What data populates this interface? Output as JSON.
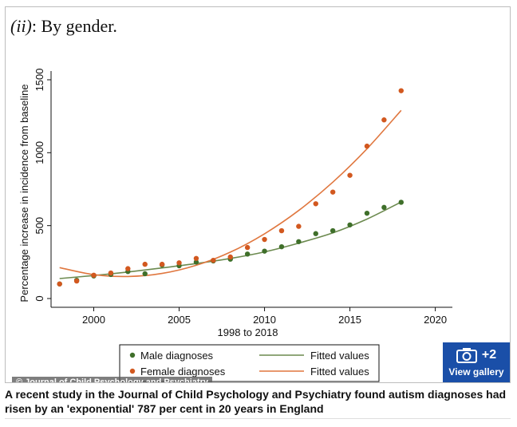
{
  "panel_label": {
    "italic_part": "(ii)",
    "text": ": By gender."
  },
  "credit": "© Journal of Child Psychology and Psychiatry",
  "gallery": {
    "count": "+2",
    "label": "View gallery",
    "icon": "camera-icon"
  },
  "caption": "A recent study in the Journal of Child Psychology and Psychiatry found autism diagnoses had risen by an 'exponential' 787 per cent in 20 years in England",
  "colors": {
    "male": "#3f6f2a",
    "female": "#d2581f",
    "male_fit": "#6c8a4f",
    "female_fit": "#e0773f",
    "gallery_bg": "#1a4fa8"
  },
  "chart_data": {
    "type": "scatter",
    "title": "",
    "xlabel": "1998 to 2018",
    "ylabel": "Percentage increase in incidence from baseline",
    "xlim": [
      1997.5,
      2021
    ],
    "ylim": [
      -60,
      1560
    ],
    "x_ticks": [
      2000,
      2005,
      2010,
      2015,
      2020
    ],
    "y_ticks": [
      0,
      500,
      1000,
      1500
    ],
    "grid": false,
    "legend_position": "bottom",
    "legend": [
      {
        "label": "Male diagnoses",
        "kind": "marker",
        "series": "male"
      },
      {
        "label": "Fitted values",
        "kind": "line",
        "series": "male_fit"
      },
      {
        "label": "Female diagnoses",
        "kind": "marker",
        "series": "female"
      },
      {
        "label": "Fitted values",
        "kind": "line",
        "series": "female_fit"
      }
    ],
    "series": [
      {
        "name": "Male diagnoses",
        "kind": "points",
        "color_key": "male",
        "x": [
          1998,
          1999,
          2000,
          2001,
          2002,
          2003,
          2004,
          2005,
          2006,
          2007,
          2008,
          2009,
          2010,
          2011,
          2012,
          2013,
          2014,
          2015,
          2016,
          2017,
          2018
        ],
        "y": [
          100,
          125,
          155,
          165,
          185,
          170,
          230,
          225,
          250,
          258,
          270,
          305,
          325,
          355,
          390,
          445,
          465,
          505,
          585,
          625,
          660
        ]
      },
      {
        "name": "Female diagnoses",
        "kind": "points",
        "color_key": "female",
        "x": [
          1998,
          1999,
          2000,
          2001,
          2002,
          2003,
          2004,
          2005,
          2006,
          2007,
          2008,
          2009,
          2010,
          2011,
          2012,
          2013,
          2014,
          2015,
          2016,
          2017,
          2018
        ],
        "y": [
          100,
          120,
          160,
          175,
          205,
          235,
          235,
          245,
          275,
          262,
          285,
          350,
          405,
          465,
          495,
          650,
          730,
          845,
          1045,
          1225,
          1425
        ]
      },
      {
        "name": "Fitted values",
        "kind": "line",
        "color_key": "male_fit",
        "x": [
          1998,
          2000,
          2002,
          2004,
          2006,
          2008,
          2010,
          2012,
          2014,
          2016,
          2018
        ],
        "y": [
          137,
          158,
          182,
          210,
          240,
          275,
          320,
          380,
          450,
          545,
          662
        ]
      },
      {
        "name": "Fitted values",
        "kind": "line",
        "color_key": "female_fit",
        "x": [
          1998,
          2000,
          2002,
          2004,
          2006,
          2008,
          2010,
          2012,
          2014,
          2016,
          2018
        ],
        "y": [
          212,
          164,
          151,
          172,
          228,
          318,
          444,
          604,
          798,
          1027,
          1290
        ]
      }
    ]
  }
}
